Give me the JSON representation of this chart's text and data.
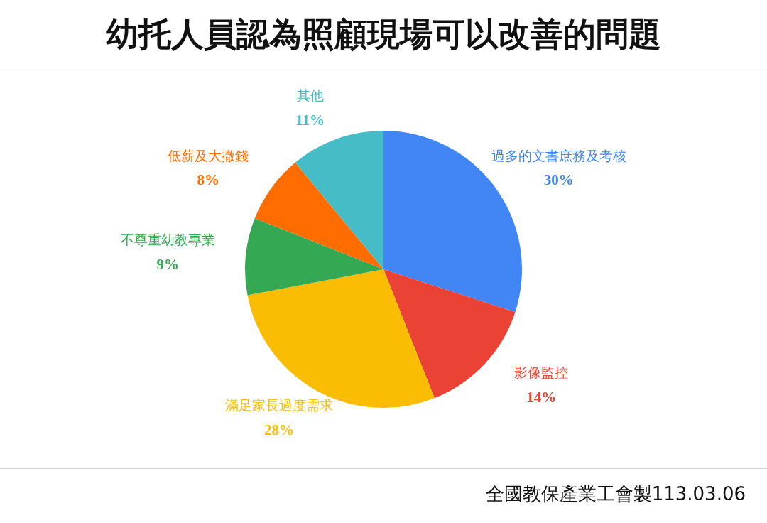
{
  "chart_data": {
    "type": "pie",
    "title": "幼托人員認為照顧現場可以改善的問題",
    "categories": [
      "過多的文書庶務及考核",
      "影像監控",
      "滿足家長過度需求",
      "不尊重幼教專業",
      "低薪及大撒錢",
      "其他"
    ],
    "values": [
      30,
      14,
      28,
      9,
      8,
      11
    ],
    "colors": [
      "#4285f4",
      "#ea4335",
      "#fbbc04",
      "#34a853",
      "#ff6d01",
      "#46bdc6"
    ],
    "value_labels": [
      "30%",
      "14%",
      "28%",
      "9%",
      "8%",
      "11%"
    ],
    "annotations": [
      "全國教保產業工會製113.03.06"
    ]
  }
}
